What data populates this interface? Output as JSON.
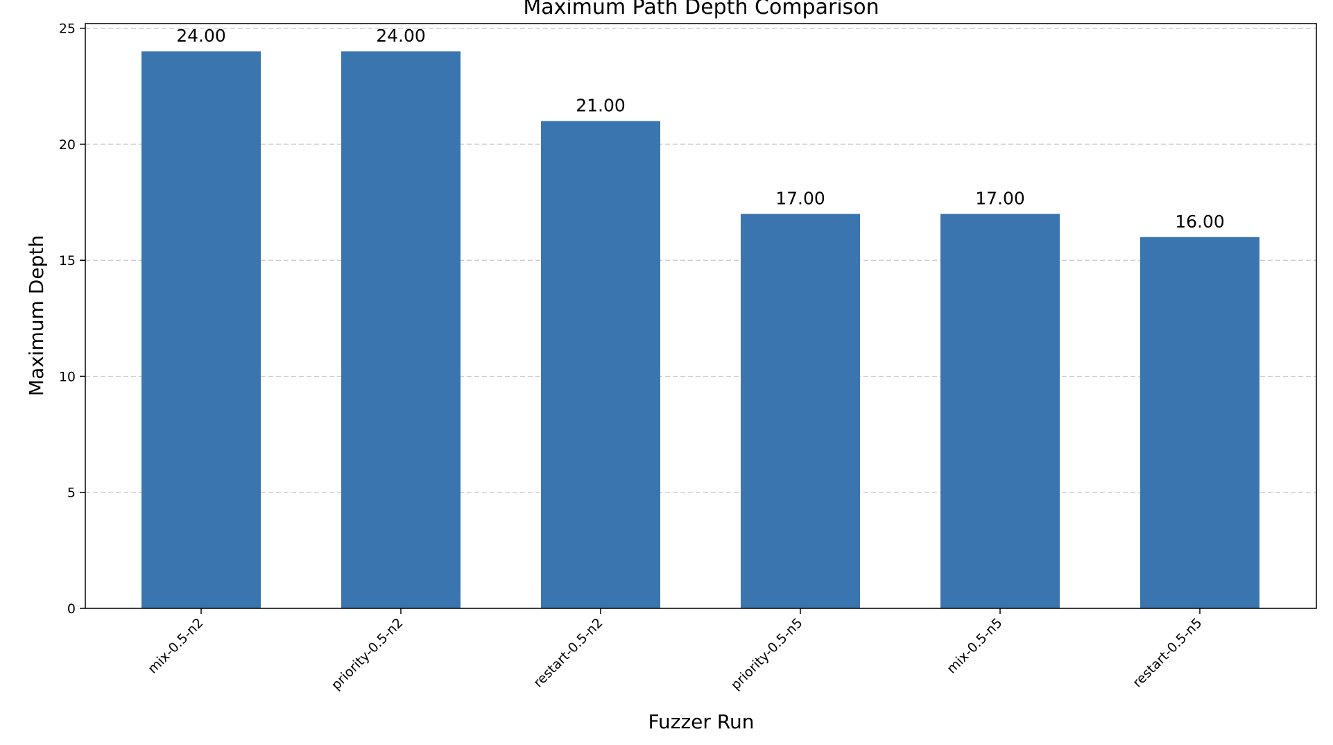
{
  "chart_data": {
    "type": "bar",
    "title": "Maximum Path Depth Comparison",
    "xlabel": "Fuzzer Run",
    "ylabel": "Maximum Depth",
    "categories": [
      "mix-0.5-n2",
      "priority-0.5-n2",
      "restart-0.5-n2",
      "priority-0.5-n5",
      "mix-0.5-n5",
      "restart-0.5-n5"
    ],
    "values": [
      24,
      24,
      21,
      17,
      17,
      16
    ],
    "value_labels": [
      "24.00",
      "24.00",
      "21.00",
      "17.00",
      "17.00",
      "16.00"
    ],
    "ylim": [
      0,
      25.2
    ],
    "yticks": [
      0,
      5,
      10,
      15,
      20,
      25
    ],
    "ytick_labels": [
      "0",
      "5",
      "10",
      "15",
      "20",
      "25"
    ],
    "grid": "y-dashed",
    "bar_color": "#3b75af"
  }
}
